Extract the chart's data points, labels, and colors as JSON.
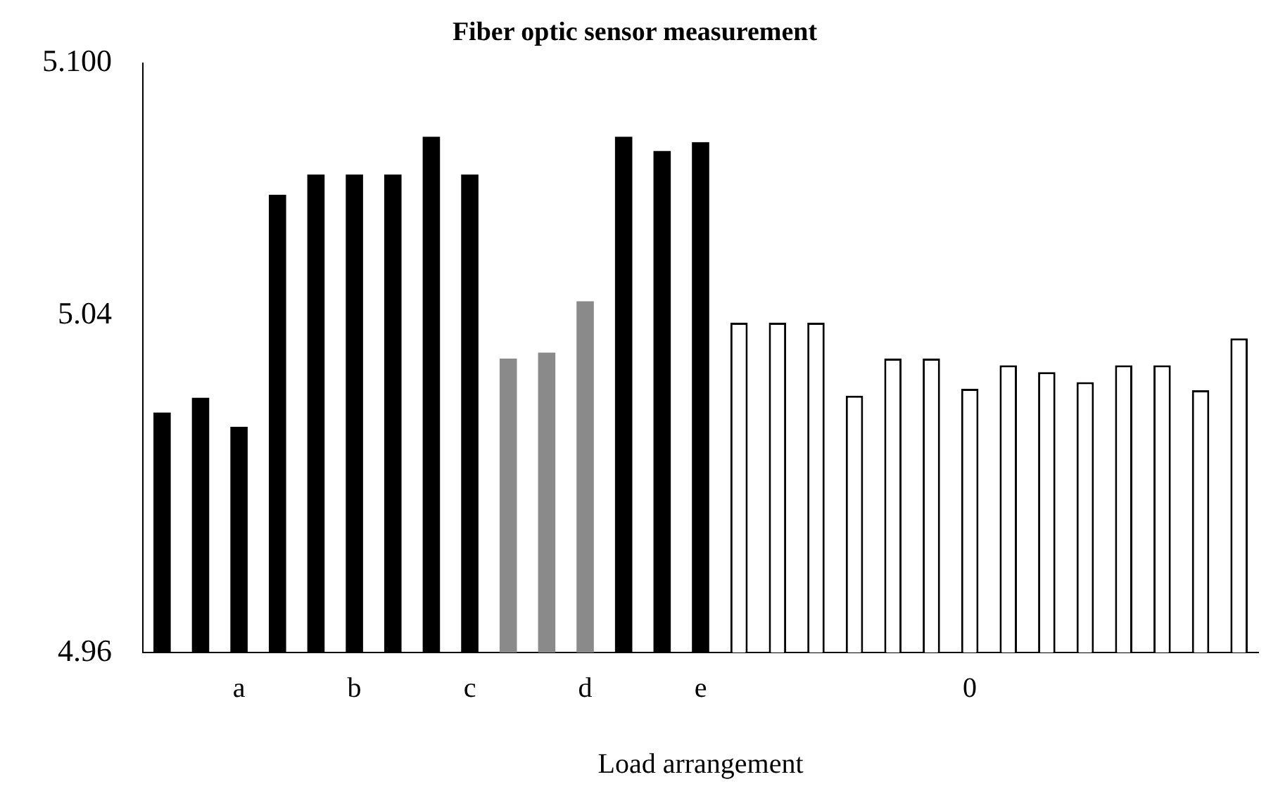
{
  "chart_data": {
    "type": "bar",
    "title": "Fiber optic sensor measurement",
    "xlabel": "Load arrangement",
    "categories": [
      null,
      null,
      "a",
      null,
      null,
      "b",
      null,
      null,
      "c",
      null,
      null,
      "d",
      null,
      null,
      "e",
      null,
      null,
      null,
      null,
      null,
      null,
      "0",
      null,
      null,
      null,
      null,
      null,
      null,
      null
    ],
    "values": [
      5.017,
      5.0205,
      5.0136,
      5.0687,
      5.0735,
      5.0735,
      5.0735,
      5.0825,
      5.0735,
      5.0298,
      5.0312,
      5.0434,
      5.0825,
      5.0791,
      5.0812,
      5.0383,
      5.0383,
      5.0383,
      5.021,
      5.0298,
      5.0298,
      5.0226,
      5.0282,
      5.0266,
      5.0242,
      5.0282,
      5.0282,
      5.0223,
      5.0346
    ],
    "colors": [
      "#000000",
      "#000000",
      "#000000",
      "#000000",
      "#000000",
      "#000000",
      "#000000",
      "#000000",
      "#000000",
      "#8a8a8a",
      "#8a8a8a",
      "#8a8a8a",
      "#000000",
      "#000000",
      "#000000",
      "#ffffff",
      "#ffffff",
      "#ffffff",
      "#ffffff",
      "#ffffff",
      "#ffffff",
      "#ffffff",
      "#ffffff",
      "#ffffff",
      "#ffffff",
      "#ffffff",
      "#ffffff",
      "#ffffff",
      "#ffffff"
    ],
    "ylim": [
      4.96,
      5.1
    ],
    "yticks": [
      4.96,
      5.04,
      {
        "value": 5.1,
        "label": "5.100"
      }
    ],
    "grid": false,
    "legend": false
  }
}
